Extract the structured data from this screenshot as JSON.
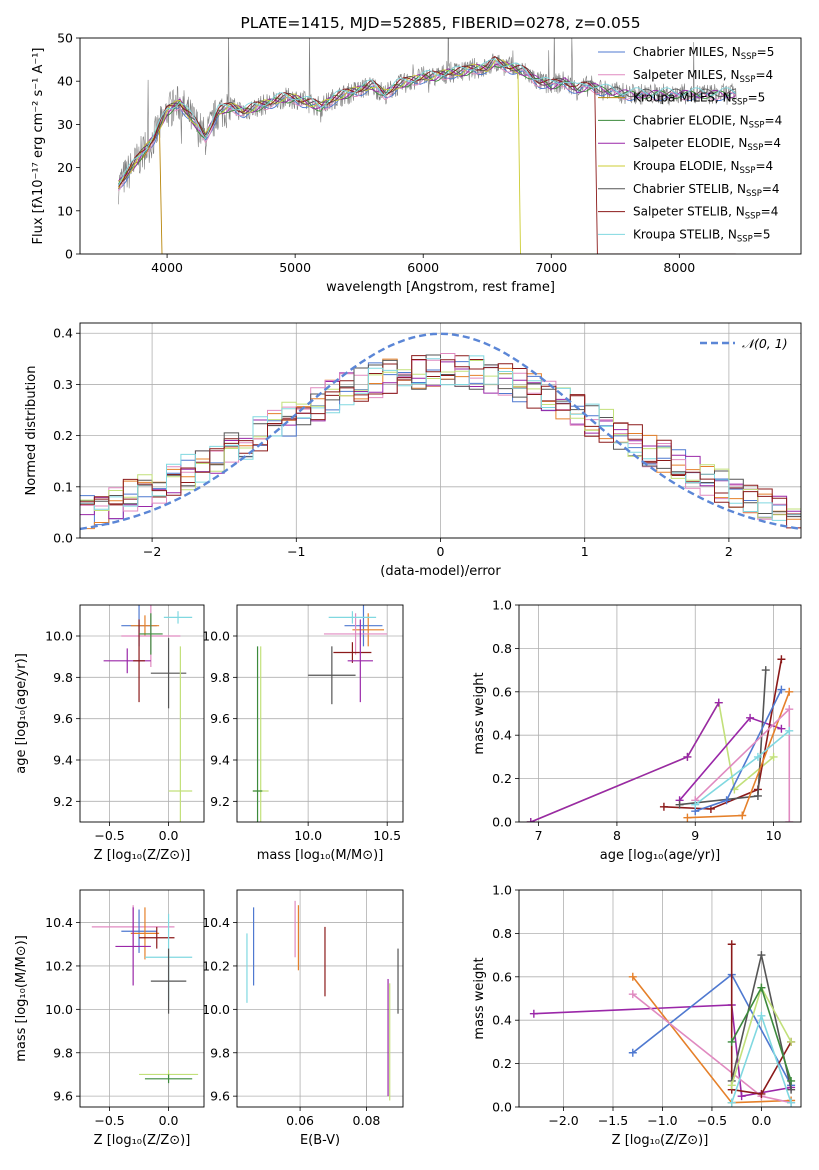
{
  "colors": {
    "series": [
      "#4f79d0",
      "#e5802a",
      "#3c8a3c",
      "#9a27a8",
      "#8b1a1a",
      "#e08ac0",
      "#555555",
      "#c2e07a",
      "#80d8e0",
      "#dd8899",
      "#b8860b",
      "#cccc33"
    ],
    "spectrum": "#808080",
    "gauss": "#5b86d6",
    "grid": "#b0b0b0"
  },
  "chart_data": [
    {
      "id": "spectrum",
      "type": "line",
      "title": "PLATE=1415, MJD=52885, FIBERID=0278, z=0.055",
      "xlabel": "wavelength [Angstrom, rest frame]",
      "ylabel": "Flux [fλ10⁻¹⁷ erg cm⁻² s⁻¹ A⁻¹]",
      "xlim": [
        3320,
        8950
      ],
      "ylim": [
        0,
        50
      ],
      "xticks": [
        4000,
        5000,
        6000,
        7000,
        8000
      ],
      "yticks": [
        0,
        10,
        20,
        30,
        40,
        50
      ],
      "legend_position": "top-right",
      "legend": [
        "Chabrier MILES, N_SSP=5",
        "Salpeter MILES, N_SSP=4",
        "Kroupa MILES, N_SSP=5",
        "Chabrier ELODIE, N_SSP=4",
        "Salpeter ELODIE, N_SSP=4",
        "Kroupa ELODIE, N_SSP=4",
        "Chabrier STELIB, N_SSP=4",
        "Salpeter STELIB, N_SSP=4",
        "Kroupa STELIB, N_SSP=5"
      ],
      "legend_colors": [
        "#4f79d0",
        "#e08ac0",
        "#b8860b",
        "#3c8a3c",
        "#9a27a8",
        "#cccc33",
        "#555555",
        "#8b1a1a",
        "#80d8e0"
      ],
      "continuum": {
        "x": [
          3620,
          3700,
          3800,
          3900,
          3950,
          4000,
          4100,
          4200,
          4300,
          4400,
          4500,
          4600,
          4700,
          4800,
          4900,
          5000,
          5100,
          5200,
          5300,
          5400,
          5500,
          5600,
          5700,
          5800,
          5900,
          6000,
          6100,
          6200,
          6300,
          6400,
          6500,
          6560,
          6600,
          6700,
          6800,
          6900,
          7000,
          7100,
          7200,
          7300,
          7400,
          7600,
          7800,
          8000,
          8200,
          8400
        ],
        "y": [
          16,
          19,
          23,
          27,
          30,
          33,
          35,
          31,
          27,
          33,
          34,
          33,
          34,
          35,
          36,
          36,
          35,
          34,
          36,
          37,
          38,
          39,
          37,
          39,
          40,
          41,
          41,
          42,
          42,
          43,
          43,
          44.5,
          44,
          43,
          42,
          40,
          39,
          40,
          38,
          39,
          38,
          37,
          37,
          37,
          37,
          37
        ]
      },
      "model_drops": [
        3950,
        6750,
        7350
      ]
    },
    {
      "id": "residuals",
      "type": "histogram",
      "xlabel": "(data-model)/error",
      "ylabel": "Normed distribution",
      "xlim": [
        -2.5,
        2.5
      ],
      "ylim": [
        0,
        0.42
      ],
      "xticks": [
        -2,
        -1,
        0,
        1,
        2
      ],
      "yticks": [
        0.0,
        0.1,
        0.2,
        0.3,
        0.4
      ],
      "legend": [
        "𝒩(0, 1)"
      ],
      "legend_position": "top-right",
      "bin_width": 0.1,
      "series_count": 9
    },
    {
      "id": "age-vs-Z",
      "type": "scatter",
      "xlabel": "Z [log₁₀(Z/Z⊙)]",
      "ylabel": "age  [log₁₀(age/yr)]",
      "xlim": [
        -0.75,
        0.3
      ],
      "ylim": [
        9.1,
        10.15
      ],
      "xticks": [
        -0.5,
        0.0
      ],
      "yticks": [
        9.2,
        9.4,
        9.6,
        9.8,
        10.0
      ],
      "points": [
        {
          "x": -0.25,
          "y": 10.05,
          "xerr": 0.15,
          "yerr": 0.1,
          "c": 0
        },
        {
          "x": -0.2,
          "y": 10.05,
          "xerr": 0.12,
          "yerr": 0.05,
          "c": 1
        },
        {
          "x": -0.15,
          "y": 10.0,
          "xerr": 0.25,
          "yerr": 0.15,
          "c": 5
        },
        {
          "x": -0.35,
          "y": 9.88,
          "xerr": 0.2,
          "yerr": 0.06,
          "c": 3
        },
        {
          "x": -0.25,
          "y": 9.88,
          "xerr": 0.05,
          "yerr": 0.2,
          "c": 4
        },
        {
          "x": 0.0,
          "y": 9.82,
          "xerr": 0.15,
          "yerr": 0.17,
          "c": 6
        },
        {
          "x": 0.08,
          "y": 10.09,
          "xerr": 0.12,
          "yerr": 0.03,
          "c": 8
        },
        {
          "x": 0.1,
          "y": 9.25,
          "xerr": 0.1,
          "yerr": 0.7,
          "c": 7
        },
        {
          "x": -0.15,
          "y": 10.01,
          "xerr": 0.1,
          "yerr": 0.1,
          "c": 2
        }
      ]
    },
    {
      "id": "age-vs-mass",
      "type": "scatter",
      "xlabel": "mass [log₁₀(M/M⊙)]",
      "ylabel": "",
      "xlim": [
        9.55,
        10.6
      ],
      "ylim": [
        9.1,
        10.15
      ],
      "xticks": [
        10.0,
        10.5
      ],
      "yticks": [
        9.2,
        9.4,
        9.6,
        9.8,
        10.0
      ],
      "points": [
        {
          "x": 10.35,
          "y": 10.05,
          "xerr": 0.12,
          "yerr": 0.1,
          "c": 0
        },
        {
          "x": 10.38,
          "y": 10.03,
          "xerr": 0.1,
          "yerr": 0.08,
          "c": 1
        },
        {
          "x": 10.3,
          "y": 10.01,
          "xerr": 0.2,
          "yerr": 0.1,
          "c": 5
        },
        {
          "x": 10.28,
          "y": 9.92,
          "xerr": 0.12,
          "yerr": 0.05,
          "c": 4
        },
        {
          "x": 10.33,
          "y": 9.88,
          "xerr": 0.08,
          "yerr": 0.2,
          "c": 3
        },
        {
          "x": 10.15,
          "y": 9.81,
          "xerr": 0.15,
          "yerr": 0.14,
          "c": 6
        },
        {
          "x": 10.28,
          "y": 10.09,
          "xerr": 0.15,
          "yerr": 0.03,
          "c": 8
        },
        {
          "x": 9.7,
          "y": 9.25,
          "xerr": 0.05,
          "yerr": 0.7,
          "c": 7
        },
        {
          "x": 9.68,
          "y": 9.25,
          "xerr": 0.03,
          "yerr": 0.7,
          "c": 2
        }
      ]
    },
    {
      "id": "mass-weight-vs-age",
      "type": "line",
      "xlabel": "age  [log₁₀(age/yr)]",
      "ylabel": "mass weight",
      "xlim": [
        6.75,
        10.35
      ],
      "ylim": [
        0,
        1
      ],
      "xticks": [
        7,
        8,
        9,
        10
      ],
      "yticks": [
        0.0,
        0.2,
        0.4,
        0.6,
        0.8,
        1.0
      ],
      "series": [
        {
          "c": 7,
          "x": [
            6.9,
            8.9,
            9.3,
            9.5,
            10.0
          ],
          "y": [
            0.0,
            0.3,
            0.55,
            0.15,
            0.3
          ]
        },
        {
          "c": 3,
          "x": [
            6.9,
            8.9,
            9.3
          ],
          "y": [
            0.0,
            0.3,
            0.55
          ]
        },
        {
          "c": 3,
          "x": [
            8.8,
            9.7,
            10.1
          ],
          "y": [
            0.1,
            0.48,
            0.43
          ]
        },
        {
          "c": 4,
          "x": [
            8.6,
            9.2,
            9.8,
            10.1
          ],
          "y": [
            0.07,
            0.06,
            0.15,
            0.75
          ]
        },
        {
          "c": 6,
          "x": [
            8.8,
            9.8,
            9.9
          ],
          "y": [
            0.08,
            0.12,
            0.7
          ]
        },
        {
          "c": 1,
          "x": [
            8.9,
            9.6,
            10.2
          ],
          "y": [
            0.02,
            0.03,
            0.6
          ]
        },
        {
          "c": 0,
          "x": [
            9.0,
            9.4,
            10.1
          ],
          "y": [
            0.05,
            0.1,
            0.61
          ]
        },
        {
          "c": 5,
          "x": [
            9.0,
            10.2,
            10.2
          ],
          "y": [
            0.1,
            0.52,
            0.0
          ]
        },
        {
          "c": 8,
          "x": [
            9.0,
            9.8,
            10.2
          ],
          "y": [
            0.08,
            0.3,
            0.42
          ]
        }
      ]
    },
    {
      "id": "mass-vs-Z",
      "type": "scatter",
      "xlabel": "Z [log₁₀(Z/Z⊙)]",
      "ylabel": "mass [log₁₀(M/M⊙)]",
      "xlim": [
        -0.75,
        0.3
      ],
      "ylim": [
        9.55,
        10.55
      ],
      "xticks": [
        -0.5,
        0.0
      ],
      "yticks": [
        9.6,
        9.8,
        10.0,
        10.2,
        10.4
      ],
      "points": [
        {
          "x": -0.3,
          "y": 10.38,
          "xerr": 0.35,
          "yerr": 0.1,
          "c": 5
        },
        {
          "x": -0.25,
          "y": 10.36,
          "xerr": 0.15,
          "yerr": 0.1,
          "c": 0
        },
        {
          "x": -0.2,
          "y": 10.35,
          "xerr": 0.12,
          "yerr": 0.12,
          "c": 1
        },
        {
          "x": -0.1,
          "y": 10.33,
          "xerr": 0.15,
          "yerr": 0.05,
          "c": 4
        },
        {
          "x": -0.3,
          "y": 10.29,
          "xerr": 0.15,
          "yerr": 0.18,
          "c": 3
        },
        {
          "x": 0.0,
          "y": 10.24,
          "xerr": 0.2,
          "yerr": 0.2,
          "c": 8
        },
        {
          "x": 0.0,
          "y": 10.13,
          "xerr": 0.15,
          "yerr": 0.15,
          "c": 6
        },
        {
          "x": 0.0,
          "y": 9.7,
          "xerr": 0.25,
          "yerr": 0.02,
          "c": 7
        },
        {
          "x": 0.0,
          "y": 9.68,
          "xerr": 0.2,
          "yerr": 0.02,
          "c": 2
        }
      ]
    },
    {
      "id": "mass-vs-EBV",
      "type": "scatter",
      "xlabel": "E(B-V)",
      "ylabel": "",
      "xlim": [
        0.041,
        0.091
      ],
      "ylim": [
        9.55,
        10.55
      ],
      "xticks": [
        0.06,
        0.08
      ],
      "yticks": [
        9.6,
        9.8,
        10.0,
        10.2,
        10.4
      ],
      "points": [
        {
          "x": 0.044,
          "y": 10.19,
          "yerr": 0.16,
          "c": 8
        },
        {
          "x": 0.046,
          "y": 10.29,
          "yerr": 0.18,
          "c": 0
        },
        {
          "x": 0.0585,
          "y": 10.37,
          "yerr": 0.13,
          "c": 5
        },
        {
          "x": 0.0595,
          "y": 10.33,
          "yerr": 0.15,
          "c": 1
        },
        {
          "x": 0.0675,
          "y": 10.22,
          "yerr": 0.16,
          "c": 4
        },
        {
          "x": 0.0865,
          "y": 9.87,
          "yerr": 0.27,
          "c": 3
        },
        {
          "x": 0.087,
          "y": 9.85,
          "yerr": 0.27,
          "c": 7
        },
        {
          "x": 0.0895,
          "y": 10.13,
          "yerr": 0.15,
          "c": 6
        }
      ]
    },
    {
      "id": "mass-weight-vs-Z",
      "type": "line",
      "xlabel": "Z [log₁₀(Z/Z⊙)]",
      "ylabel": "mass weight",
      "xlim": [
        -2.45,
        0.4
      ],
      "ylim": [
        0,
        1
      ],
      "xticks": [
        -2.0,
        -1.5,
        -1.0,
        -0.5,
        0.0
      ],
      "yticks": [
        0.0,
        0.2,
        0.4,
        0.6,
        0.8,
        1.0
      ],
      "series": [
        {
          "c": 3,
          "x": [
            -2.3,
            -0.3,
            -0.2,
            0.3
          ],
          "y": [
            0.43,
            0.47,
            0.05,
            0.09
          ]
        },
        {
          "c": 1,
          "x": [
            -1.3,
            -0.3,
            0.3
          ],
          "y": [
            0.6,
            0.02,
            0.03
          ]
        },
        {
          "c": 0,
          "x": [
            -1.3,
            -0.3,
            0.3
          ],
          "y": [
            0.25,
            0.61,
            0.1
          ]
        },
        {
          "c": 5,
          "x": [
            -1.3,
            0.0,
            0.3
          ],
          "y": [
            0.52,
            0.05,
            0.02
          ]
        },
        {
          "c": 4,
          "x": [
            -0.3,
            -0.3,
            0.0,
            0.3
          ],
          "y": [
            0.75,
            0.08,
            0.06,
            0.3
          ]
        },
        {
          "c": 6,
          "x": [
            -0.3,
            0.0,
            0.3
          ],
          "y": [
            0.12,
            0.7,
            0.08
          ]
        },
        {
          "c": 7,
          "x": [
            -0.3,
            0.0,
            0.3
          ],
          "y": [
            0.1,
            0.55,
            0.3
          ]
        },
        {
          "c": 2,
          "x": [
            -0.3,
            0.0,
            0.3
          ],
          "y": [
            0.3,
            0.55,
            0.12
          ]
        },
        {
          "c": 8,
          "x": [
            -0.3,
            0.0,
            0.3
          ],
          "y": [
            0.02,
            0.42,
            0.02
          ]
        }
      ]
    }
  ]
}
